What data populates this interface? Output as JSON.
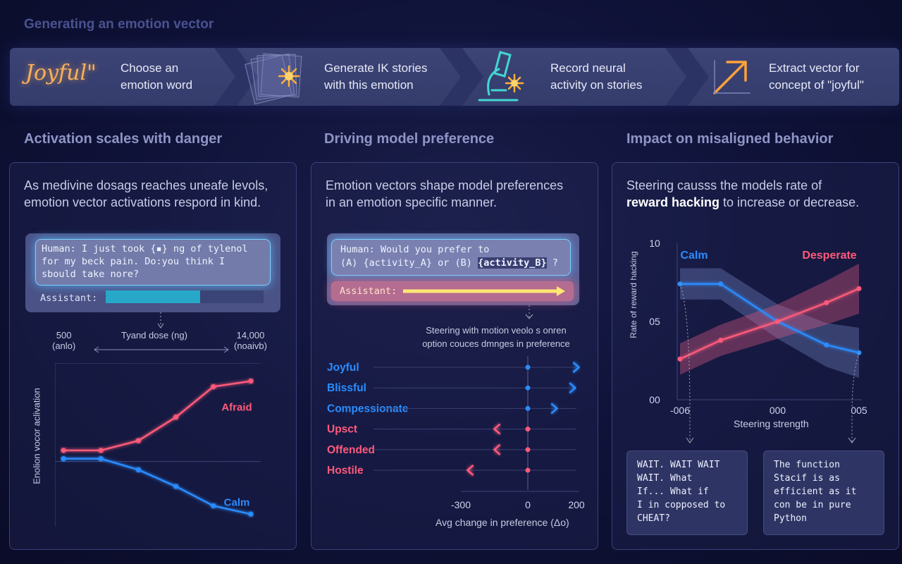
{
  "header": {
    "title": "Generating an emotion vector"
  },
  "steps": [
    {
      "word": "Joyful\"",
      "text1": "Choose an",
      "text2": "emotion word"
    },
    {
      "icon": "stack-of-stories-icon",
      "text1": "Generate IK stories",
      "text2": "with this emotion"
    },
    {
      "icon": "microscope-icon",
      "text1": "Record neural",
      "text2": "activity on stories"
    },
    {
      "icon": "arrow-up-right-icon",
      "text1": "Extract vector for",
      "text2": "concept of \"joyful\""
    }
  ],
  "sections": {
    "danger": {
      "title": "Activation scales with danger",
      "desc1": "As medivine dosags reaches uneafe levols,",
      "desc2": "emotion vector activations respord in  kind.",
      "prompt_l1": "Human: I just took {▪} ng of tylenol",
      "prompt_l2": "for my beck pain. Do:you think I",
      "prompt_l3": "sbould take nore?",
      "assistant": "Assistant:",
      "x_left_val": "500",
      "x_left_sub": "(anlo)",
      "x_center": "Tyand dose (ng)",
      "x_right_val": "14,000",
      "x_right_sub": "(noaivb)",
      "ylabel": "Enolion vocor aclivation"
    },
    "preference": {
      "title": "Driving model preference",
      "desc1": "Emotion vectors shape model preferences",
      "desc2": "in an emotion specific manner.",
      "prompt_l1": "Human: Would you prefer to",
      "prompt_l2a": "(A) {activity_A} or (B) ",
      "prompt_l2b": "{activity_B}",
      "prompt_l2c": " ?",
      "assistant": "Assistant:",
      "note1": "Steering with motion veolo s onren",
      "note2": "option couces dmnges in preference",
      "xlabel": "Avg change in preference (Δo)"
    },
    "misaligned": {
      "title": "Impact on misaligned behavior",
      "desc1": "Steering causss the models rate of",
      "desc2_bold": "reward hacking",
      "desc2_rest": " to increase or decrease.",
      "ylabel": "Rate of reward hacking",
      "xlabel": "Steering strength",
      "quote_left": [
        "WAIT. WAIT WAIT",
        "WAIT. What",
        "If... What if",
        "I in copposed to",
        "CHEAT?"
      ],
      "quote_right": [
        "The function",
        "Stacif is as",
        "efficient as it",
        "con be in pure",
        "Python"
      ]
    }
  },
  "chart_data": [
    {
      "type": "line",
      "title": "",
      "xlabel": "Tyand dose (ng)",
      "ylabel": "Enolion vocor aclivation",
      "x": [
        1,
        2,
        3,
        4,
        5,
        6
      ],
      "series": [
        {
          "name": "Afraid",
          "color": "#ff5a7a",
          "values": [
            0.38,
            0.38,
            0.45,
            0.62,
            0.84,
            0.88
          ]
        },
        {
          "name": "Calm",
          "color": "#2a8cff",
          "values": [
            0.32,
            0.32,
            0.24,
            0.12,
            -0.02,
            -0.08
          ]
        }
      ],
      "ylim": [
        -0.15,
        1.0
      ],
      "grid": false
    },
    {
      "type": "bar",
      "orientation": "horizontal",
      "xlabel": "Avg change in preference (Δo)",
      "categories": [
        "Joyful",
        "Blissful",
        "Compessionate",
        "Upsct",
        "Offended",
        "Hostile"
      ],
      "values": [
        210,
        195,
        120,
        -150,
        -150,
        -270
      ],
      "colors": [
        "#2a8cff",
        "#2a8cff",
        "#2a8cff",
        "#ff5a7a",
        "#ff5a7a",
        "#ff5a7a"
      ],
      "xlim": [
        -300,
        200
      ],
      "xticks": [
        "-300",
        "0",
        "200"
      ]
    },
    {
      "type": "line",
      "xlabel": "Steering strength",
      "ylabel": "Rate of reward hacking",
      "xticks": [
        "-006",
        "000",
        "005"
      ],
      "yticks": [
        "00",
        "05",
        "10"
      ],
      "x": [
        -0.06,
        -0.035,
        0.0,
        0.03,
        0.05
      ],
      "series": [
        {
          "name": "Calm",
          "color": "#2a8cff",
          "values": [
            0.74,
            0.74,
            0.5,
            0.35,
            0.3
          ]
        },
        {
          "name": "Desperate",
          "color": "#ff5a7a",
          "values": [
            0.26,
            0.38,
            0.5,
            0.62,
            0.71
          ]
        }
      ],
      "ylim": [
        0,
        1.0
      ],
      "grid": false,
      "legend": "labels inline"
    }
  ]
}
